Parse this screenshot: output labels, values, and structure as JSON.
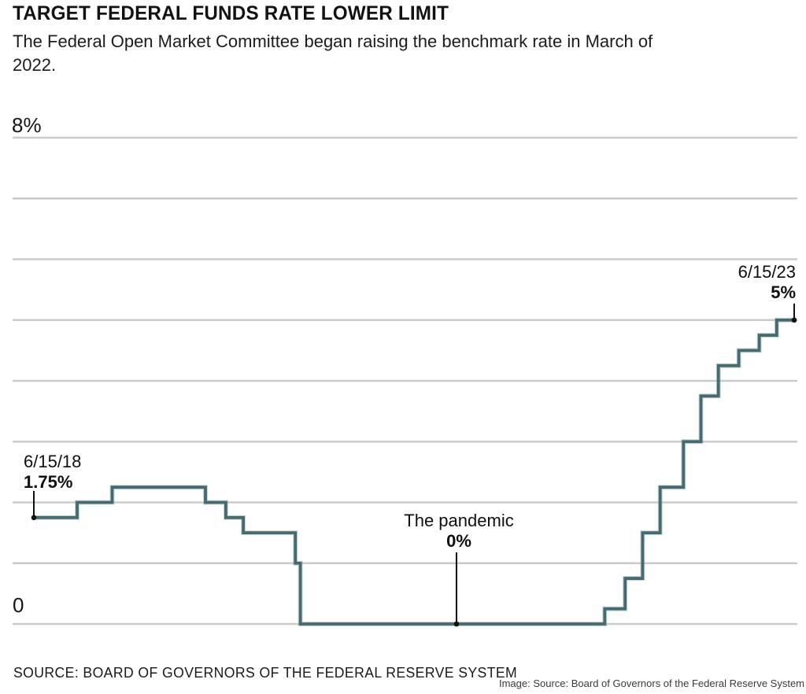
{
  "chart_data": {
    "type": "line",
    "step": true,
    "title": "TARGET FEDERAL FUNDS RATE LOWER LIMIT",
    "subtitle": "The Federal Open Market Committee began raising the benchmark rate in March of 2022.",
    "source": "SOURCE: BOARD OF GOVERNORS OF THE FEDERAL RESERVE SYSTEM",
    "attribution": "Image: Source: Board of Governors of the Federal Reserve System",
    "xlabel": "",
    "ylabel": "",
    "ylim": [
      0,
      8
    ],
    "grid_interval_pct": 1,
    "grid_on": true,
    "x_range": [
      "2018-06-15",
      "2023-06-15"
    ],
    "yticks": [
      {
        "value": 8,
        "label": "8%"
      },
      {
        "value": 0,
        "label": "0"
      }
    ],
    "series": [
      {
        "name": "Target federal funds rate lower limit (%)",
        "points": [
          [
            "2018-06-15",
            1.75
          ],
          [
            "2018-09-27",
            2.0
          ],
          [
            "2018-12-20",
            2.25
          ],
          [
            "2019-08-01",
            2.0
          ],
          [
            "2019-09-19",
            1.75
          ],
          [
            "2019-10-31",
            1.5
          ],
          [
            "2020-03-04",
            1.0
          ],
          [
            "2020-03-16",
            0.0
          ],
          [
            "2022-03-17",
            0.25
          ],
          [
            "2022-05-05",
            0.75
          ],
          [
            "2022-06-16",
            1.5
          ],
          [
            "2022-07-28",
            2.25
          ],
          [
            "2022-09-22",
            3.0
          ],
          [
            "2022-11-03",
            3.75
          ],
          [
            "2022-12-15",
            4.25
          ],
          [
            "2023-02-02",
            4.5
          ],
          [
            "2023-03-23",
            4.75
          ],
          [
            "2023-05-04",
            5.0
          ],
          [
            "2023-06-15",
            5.0
          ]
        ]
      }
    ],
    "annotations": [
      {
        "id": "start",
        "date": "2018-06-15",
        "value": 1.75,
        "line1": "6/15/18",
        "line2": "1.75%"
      },
      {
        "id": "pandemic",
        "date": "2021-03-26",
        "value": 0,
        "line1": "The pandemic",
        "line2": "0%"
      },
      {
        "id": "end",
        "date": "2023-06-15",
        "value": 5,
        "line1": "6/15/23",
        "line2": "5%"
      }
    ],
    "colors": {
      "line": "#456a6f",
      "line_halo": "#8aa6a8",
      "grid": "#cbcbcb",
      "marker": "#111111",
      "text": "#111111"
    }
  }
}
